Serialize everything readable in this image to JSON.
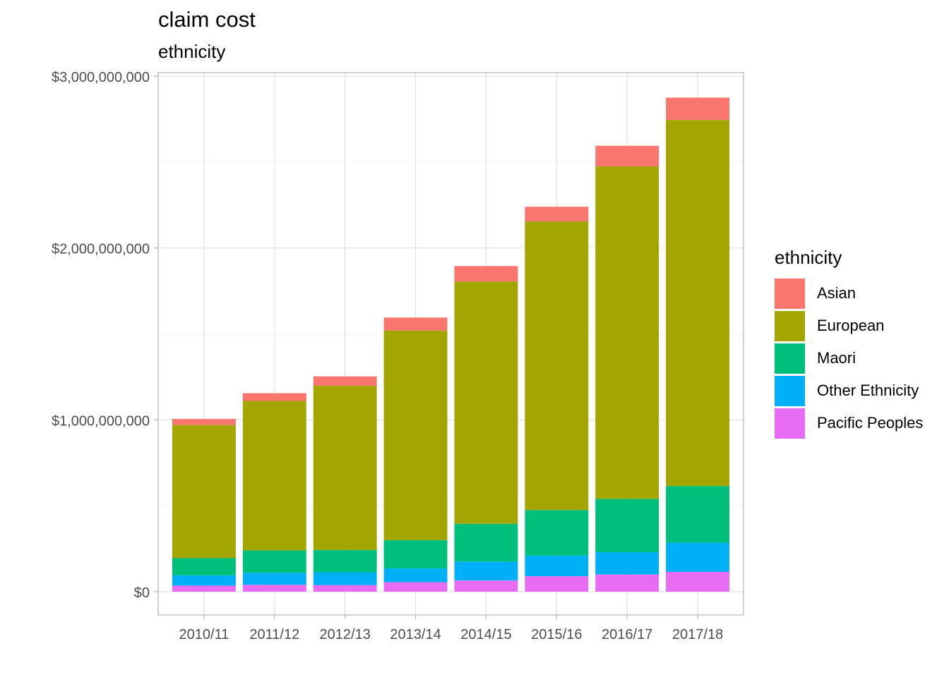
{
  "chart_data": {
    "type": "bar",
    "stacked": true,
    "title": "claim cost",
    "subtitle": "ethnicity",
    "xlabel": "",
    "ylabel": "",
    "ylim": [
      -150000000,
      3000000000
    ],
    "y_ticks": [
      0,
      1000000000,
      2000000000,
      3000000000
    ],
    "y_tick_labels": [
      "$0",
      "$1,000,000,000",
      "$2,000,000,000",
      "$3,000,000,000"
    ],
    "grid": true,
    "legend_position": "right",
    "legend_title": "ethnicity",
    "categories": [
      "2010/11",
      "2011/12",
      "2012/13",
      "2013/14",
      "2014/15",
      "2015/16",
      "2016/17",
      "2017/18"
    ],
    "series": [
      {
        "name": "Pacific Peoples",
        "color": "#E76BF3",
        "values": [
          35000000,
          40000000,
          38000000,
          55000000,
          65000000,
          90000000,
          100000000,
          115000000
        ]
      },
      {
        "name": "Other Ethnicity",
        "color": "#00B0F6",
        "values": [
          60000000,
          70000000,
          75000000,
          80000000,
          110000000,
          120000000,
          130000000,
          170000000
        ]
      },
      {
        "name": "Maori",
        "color": "#00BF7D",
        "values": [
          100000000,
          130000000,
          130000000,
          165000000,
          220000000,
          265000000,
          310000000,
          330000000
        ]
      },
      {
        "name": "European",
        "color": "#A3A500",
        "values": [
          775000000,
          870000000,
          955000000,
          1220000000,
          1410000000,
          1680000000,
          1935000000,
          2130000000
        ]
      },
      {
        "name": "Asian",
        "color": "#F8766D",
        "values": [
          35000000,
          45000000,
          55000000,
          75000000,
          90000000,
          85000000,
          120000000,
          130000000
        ]
      }
    ],
    "legend_order": [
      "Asian",
      "European",
      "Maori",
      "Other Ethnicity",
      "Pacific Peoples"
    ]
  }
}
